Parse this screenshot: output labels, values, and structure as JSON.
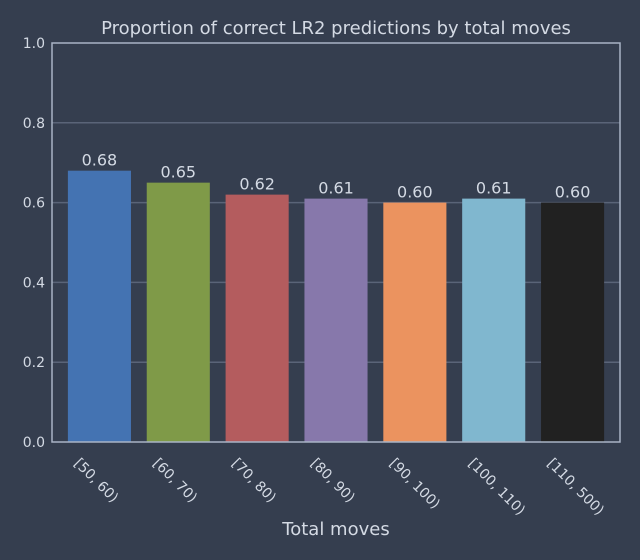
{
  "chart_data": {
    "type": "bar",
    "title": "Proportion of correct LR2 predictions by total moves",
    "xlabel": "Total moves",
    "ylabel": "",
    "categories": [
      "[50, 60)",
      "[60, 70)",
      "[70, 80)",
      "[80, 90)",
      "[90, 100)",
      "[100, 110)",
      "[110, 500)"
    ],
    "values": [
      0.68,
      0.65,
      0.62,
      0.61,
      0.6,
      0.61,
      0.6
    ],
    "value_labels": [
      "0.68",
      "0.65",
      "0.62",
      "0.61",
      "0.60",
      "0.61",
      "0.60"
    ],
    "bar_colors": [
      "#4473b2",
      "#7f9a48",
      "#b45c5e",
      "#8778ab",
      "#eb935f",
      "#80b7cf",
      "#212121"
    ],
    "ylim": [
      0,
      1.0
    ],
    "yticks": [
      0.0,
      0.2,
      0.4,
      0.6,
      0.8,
      1.0
    ],
    "ytick_labels": [
      "0.0",
      "0.2",
      "0.4",
      "0.6",
      "0.8",
      "1.0"
    ],
    "grid": "horizontal",
    "x_tick_rotation": "-45"
  },
  "colors": {
    "background": "#353e4f",
    "text": "#d4dae4",
    "grid": "#5a6478",
    "axes": "#a9b4c6"
  }
}
